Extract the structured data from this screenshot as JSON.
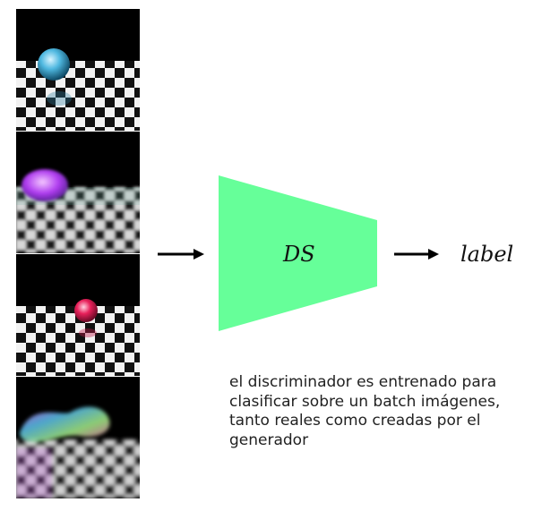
{
  "frames": [
    {
      "alt": "reflective blue sphere on checkerboard floor",
      "sphere_color": "#4fb8e0"
    },
    {
      "alt": "blurry generated purple blob on checkerboard floor",
      "sphere_color": "#b03cf0"
    },
    {
      "alt": "reflective pink sphere on checkerboard floor",
      "sphere_color": "#e8205a"
    },
    {
      "alt": "distorted generated multicolor blob on checkerboard floor",
      "sphere_color": "#7a6ec8"
    }
  ],
  "model": {
    "label": "DS",
    "fill_color": "#66ff99"
  },
  "output_label": "label",
  "caption": "el discriminador es entrenado para clasificar sobre un batch imágenes, tanto reales como creadas por el generador"
}
